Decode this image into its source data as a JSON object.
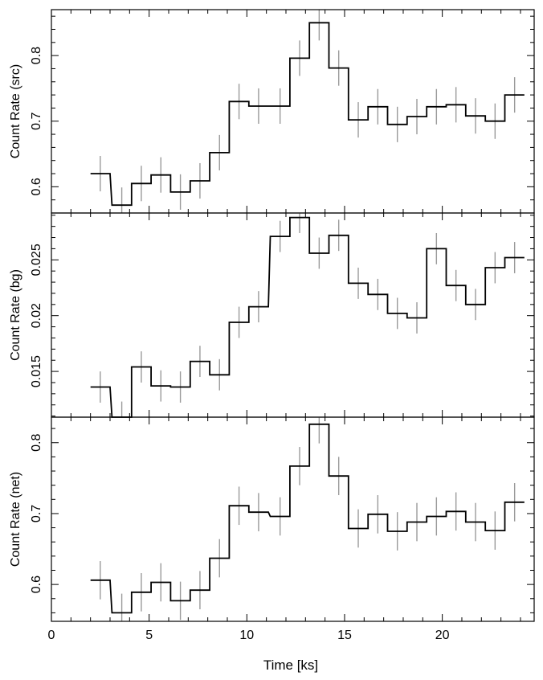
{
  "figure": {
    "xlabel": "Time [ks]",
    "x_ticks": [
      "0",
      "5",
      "10",
      "15",
      "20"
    ]
  },
  "colors": {
    "step_line": "#000000",
    "error_bar": "#9a9a9a",
    "axes": "#000000"
  },
  "chart_data": [
    {
      "type": "line",
      "drawstyle": "step",
      "ylabel": "Count Rate (src)",
      "xlabel": "",
      "xlim": [
        0,
        24.7
      ],
      "ylim": [
        0.56,
        0.87
      ],
      "x_tick_labels": [],
      "y_ticks": [
        0.6,
        0.7,
        0.8
      ],
      "y_tick_labels": [
        "0.6",
        "0.7",
        "0.8"
      ],
      "x": [
        2.5,
        3.6,
        4.6,
        5.6,
        6.6,
        7.6,
        8.6,
        9.6,
        10.6,
        11.7,
        12.7,
        13.7,
        14.7,
        15.7,
        16.7,
        17.7,
        18.7,
        19.7,
        20.7,
        21.7,
        22.7,
        23.7
      ],
      "y": [
        0.62,
        0.572,
        0.605,
        0.618,
        0.592,
        0.609,
        0.652,
        0.73,
        0.723,
        0.723,
        0.796,
        0.85,
        0.781,
        0.702,
        0.722,
        0.695,
        0.707,
        0.722,
        0.725,
        0.708,
        0.7,
        0.74
      ],
      "yerr": 0.027
    },
    {
      "type": "line",
      "drawstyle": "step",
      "ylabel": "Count Rate (bg)",
      "xlabel": "",
      "xlim": [
        0,
        24.7
      ],
      "ylim": [
        0.0109,
        0.0292
      ],
      "x_tick_labels": [],
      "y_ticks": [
        0.015,
        0.02,
        0.025
      ],
      "y_tick_labels": [
        "0.015",
        "0.02",
        "0.025"
      ],
      "x": [
        2.5,
        3.6,
        4.6,
        5.6,
        6.6,
        7.6,
        8.6,
        9.6,
        10.6,
        11.7,
        12.7,
        13.7,
        14.7,
        15.7,
        16.7,
        17.7,
        18.7,
        19.7,
        20.7,
        21.7,
        22.7,
        23.7
      ],
      "y": [
        0.0136,
        0.0109,
        0.0154,
        0.0137,
        0.0136,
        0.0159,
        0.0147,
        0.0194,
        0.0208,
        0.0271,
        0.0288,
        0.0256,
        0.0272,
        0.0229,
        0.0219,
        0.0202,
        0.0198,
        0.026,
        0.0227,
        0.021,
        0.0243,
        0.0252
      ],
      "yerr": 0.0014
    },
    {
      "type": "line",
      "drawstyle": "step",
      "ylabel": "Count Rate (net)",
      "xlabel": "Time [ks]",
      "xlim": [
        0,
        24.7
      ],
      "ylim": [
        0.548,
        0.836
      ],
      "x_tick_labels": [
        "0",
        "5",
        "10",
        "15",
        "20"
      ],
      "x_ticks": [
        0,
        5,
        10,
        15,
        20
      ],
      "y_ticks": [
        0.6,
        0.7,
        0.8
      ],
      "y_tick_labels": [
        "0.6",
        "0.7",
        "0.8"
      ],
      "x": [
        2.5,
        3.6,
        4.6,
        5.6,
        6.6,
        7.6,
        8.6,
        9.6,
        10.6,
        11.7,
        12.7,
        13.7,
        14.7,
        15.7,
        16.7,
        17.7,
        18.7,
        19.7,
        20.7,
        21.7,
        22.7,
        23.7
      ],
      "y": [
        0.606,
        0.56,
        0.589,
        0.603,
        0.577,
        0.592,
        0.637,
        0.711,
        0.702,
        0.696,
        0.767,
        0.826,
        0.753,
        0.679,
        0.699,
        0.675,
        0.688,
        0.696,
        0.703,
        0.688,
        0.676,
        0.716
      ],
      "yerr": 0.027
    }
  ]
}
